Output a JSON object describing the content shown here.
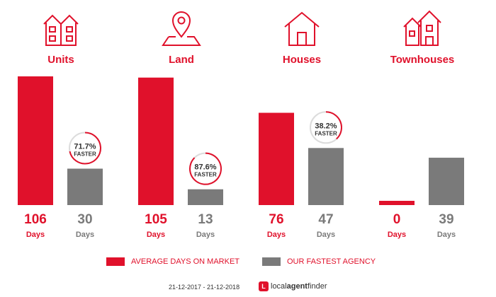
{
  "chart_data": {
    "type": "bar",
    "categories": [
      "Units",
      "Land",
      "Houses",
      "Townhouses"
    ],
    "series": [
      {
        "name": "AVERAGE DAYS ON MARKET",
        "values": [
          106,
          105,
          76,
          0
        ],
        "color": "#e0112b"
      },
      {
        "name": "OUR FASTEST AGENCY",
        "values": [
          30,
          13,
          47,
          39
        ],
        "color": "#7a7a7a"
      }
    ],
    "value_unit_label": "Days",
    "faster_badges": [
      {
        "category": "Units",
        "percent": "71.7%",
        "label": "FASTER",
        "fraction": 0.717
      },
      {
        "category": "Land",
        "percent": "87.6%",
        "label": "FASTER",
        "fraction": 0.876
      },
      {
        "category": "Houses",
        "percent": "38.2%",
        "label": "FASTER",
        "fraction": 0.382
      }
    ],
    "legend_placement": "bottom",
    "grid": false
  },
  "icons": [
    "units-icon",
    "land-icon",
    "houses-icon",
    "townhouses-icon"
  ],
  "legend": {
    "average_label": "AVERAGE DAYS ON MARKET",
    "fastest_label": "OUR FASTEST AGENCY"
  },
  "footer": {
    "date_range": "21-12-2017 - 21-12-2018",
    "brand_first": "local",
    "brand_second": "agent",
    "brand_third": "finder"
  },
  "colors": {
    "accent": "#e0112b",
    "secondary": "#7a7a7a",
    "track": "#dcdcdc"
  }
}
